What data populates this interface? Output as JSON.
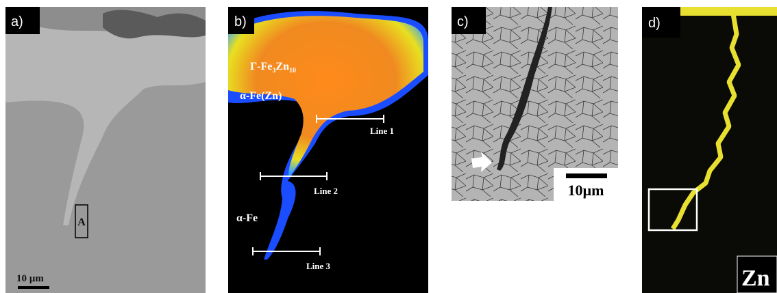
{
  "panels": [
    {
      "label": "a)",
      "annotations": [
        "A"
      ],
      "scale_bar": "10 µm"
    },
    {
      "label": "b)",
      "phase_label": [
        "Γ-Fe",
        "3",
        "Zn",
        "10"
      ],
      "annotations": [
        "α-Fe(Zn)",
        "Line 1",
        "Line 2",
        "Line 3",
        "α-Fe"
      ]
    },
    {
      "label": "c)",
      "scale_bar": "10µm"
    },
    {
      "label": "d)",
      "element": "Zn"
    }
  ]
}
